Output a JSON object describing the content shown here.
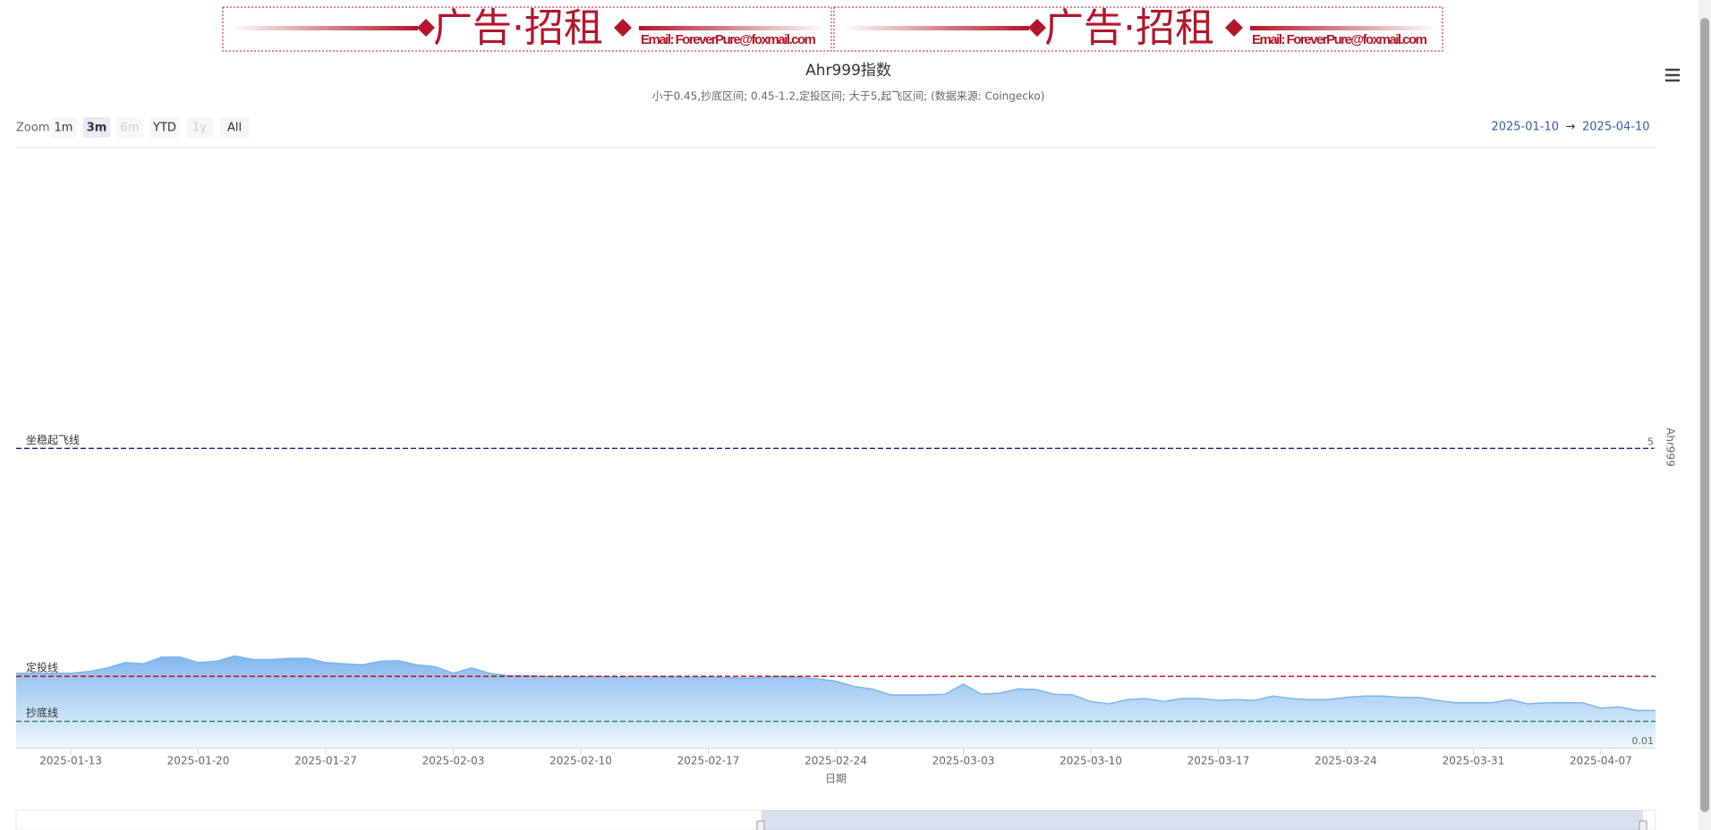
{
  "ad_banner": [
    {
      "headline": "广告·招租",
      "email": "Email: ForeverPure@foxmail.com"
    },
    {
      "headline": "广告·招租",
      "email": "Email: ForeverPure@foxmail.com"
    }
  ],
  "range_selector": {
    "label": "Zoom",
    "buttons": [
      {
        "text": "1m",
        "state": "normal"
      },
      {
        "text": "3m",
        "state": "selected"
      },
      {
        "text": "6m",
        "state": "disabled"
      },
      {
        "text": "YTD",
        "state": "normal"
      },
      {
        "text": "1y",
        "state": "disabled"
      },
      {
        "text": "All",
        "state": "normal"
      }
    ],
    "separator": "→"
  },
  "chart_data": {
    "type": "area",
    "title": "Ahr999指数",
    "subtitle": "小于0.45,抄底区间; 0.45-1.2,定投区间; 大于5,起飞区间;  (数据来源: Coingecko)",
    "x_axis_title": "日期",
    "y_axis_title": "Ahr999",
    "color": "#7cb5ec",
    "xlim": [
      "2025-01-10",
      "2025-04-10"
    ],
    "xticks": [
      "2025-01-13",
      "2025-01-20",
      "2025-01-27",
      "2025-02-03",
      "2025-02-10",
      "2025-02-17",
      "2025-02-24",
      "2025-03-03",
      "2025-03-10",
      "2025-03-17",
      "2025-03-24",
      "2025-03-31",
      "2025-04-07"
    ],
    "ylim": [
      0.01,
      10
    ],
    "yticks": [
      0.01,
      5
    ],
    "plot_lines": [
      {
        "value": 5,
        "label": "坐稳起飞线",
        "color": "#1f1f8f"
      },
      {
        "value": 1.2,
        "label": "定投线",
        "color": "#c00000"
      },
      {
        "value": 0.45,
        "label": "抄底线",
        "color": "#1e7a3a"
      }
    ],
    "x": [
      "2025-01-10",
      "2025-01-11",
      "2025-01-12",
      "2025-01-13",
      "2025-01-14",
      "2025-01-15",
      "2025-01-16",
      "2025-01-17",
      "2025-01-18",
      "2025-01-19",
      "2025-01-20",
      "2025-01-21",
      "2025-01-22",
      "2025-01-23",
      "2025-01-24",
      "2025-01-25",
      "2025-01-26",
      "2025-01-27",
      "2025-01-28",
      "2025-01-29",
      "2025-01-30",
      "2025-01-31",
      "2025-02-01",
      "2025-02-02",
      "2025-02-03",
      "2025-02-04",
      "2025-02-05",
      "2025-02-06",
      "2025-02-07",
      "2025-02-08",
      "2025-02-09",
      "2025-02-10",
      "2025-02-11",
      "2025-02-12",
      "2025-02-13",
      "2025-02-14",
      "2025-02-15",
      "2025-02-16",
      "2025-02-17",
      "2025-02-18",
      "2025-02-19",
      "2025-02-20",
      "2025-02-21",
      "2025-02-22",
      "2025-02-23",
      "2025-02-24",
      "2025-02-25",
      "2025-02-26",
      "2025-02-27",
      "2025-02-28",
      "2025-03-01",
      "2025-03-02",
      "2025-03-03",
      "2025-03-04",
      "2025-03-05",
      "2025-03-06",
      "2025-03-07",
      "2025-03-08",
      "2025-03-09",
      "2025-03-10",
      "2025-03-11",
      "2025-03-12",
      "2025-03-13",
      "2025-03-14",
      "2025-03-15",
      "2025-03-16",
      "2025-03-17",
      "2025-03-18",
      "2025-03-19",
      "2025-03-20",
      "2025-03-21",
      "2025-03-22",
      "2025-03-23",
      "2025-03-24",
      "2025-03-25",
      "2025-03-26",
      "2025-03-27",
      "2025-03-28",
      "2025-03-29",
      "2025-03-30",
      "2025-03-31",
      "2025-04-01",
      "2025-04-02",
      "2025-04-03",
      "2025-04-04",
      "2025-04-05",
      "2025-04-06",
      "2025-04-07",
      "2025-04-08",
      "2025-04-09",
      "2025-04-10"
    ],
    "values": [
      1.25,
      1.25,
      1.25,
      1.25,
      1.28,
      1.34,
      1.43,
      1.41,
      1.52,
      1.52,
      1.43,
      1.45,
      1.54,
      1.48,
      1.48,
      1.5,
      1.5,
      1.43,
      1.41,
      1.39,
      1.45,
      1.46,
      1.39,
      1.36,
      1.25,
      1.34,
      1.25,
      1.21,
      1.21,
      1.2,
      1.19,
      1.19,
      1.2,
      1.18,
      1.2,
      1.19,
      1.19,
      1.18,
      1.19,
      1.18,
      1.17,
      1.18,
      1.2,
      1.18,
      1.16,
      1.12,
      1.03,
      0.99,
      0.89,
      0.89,
      0.89,
      0.9,
      1.07,
      0.9,
      0.92,
      0.99,
      0.98,
      0.9,
      0.89,
      0.78,
      0.74,
      0.81,
      0.83,
      0.78,
      0.83,
      0.83,
      0.8,
      0.81,
      0.8,
      0.87,
      0.83,
      0.81,
      0.81,
      0.85,
      0.87,
      0.87,
      0.85,
      0.85,
      0.8,
      0.76,
      0.76,
      0.76,
      0.81,
      0.74,
      0.76,
      0.76,
      0.76,
      0.67,
      0.69,
      0.63,
      0.63
    ]
  }
}
